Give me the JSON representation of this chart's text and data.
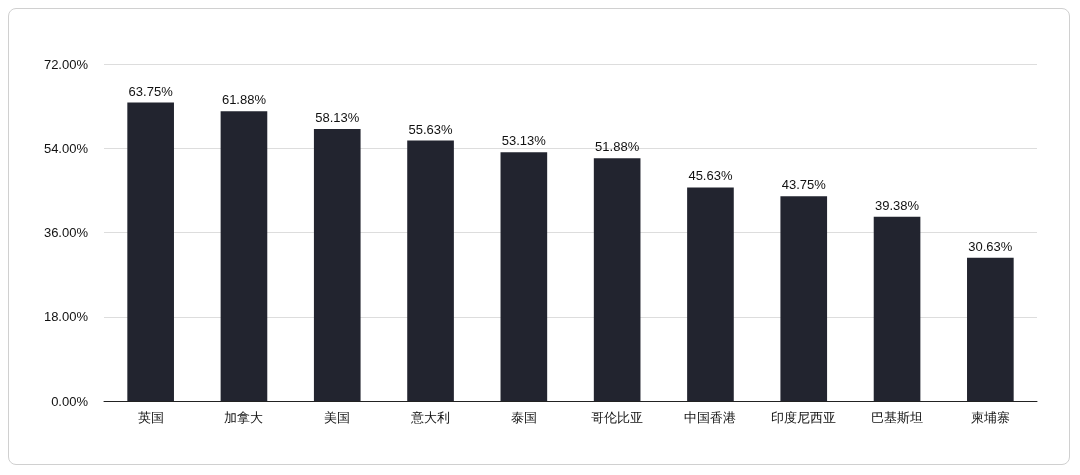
{
  "chart_data": {
    "type": "bar",
    "categories": [
      "英国",
      "加拿大",
      "美国",
      "意大利",
      "泰国",
      "哥伦比亚",
      "中国香港",
      "印度尼西亚",
      "巴基斯坦",
      "柬埔寨"
    ],
    "values": [
      63.75,
      61.88,
      58.13,
      55.63,
      53.13,
      51.88,
      45.63,
      43.75,
      39.38,
      30.63
    ],
    "value_labels": [
      "63.75%",
      "61.88%",
      "58.13%",
      "55.63%",
      "53.13%",
      "51.88%",
      "45.63%",
      "43.75%",
      "39.38%",
      "30.63%"
    ],
    "color": "#22242f",
    "ylim": [
      0,
      72
    ],
    "yticks": [
      {
        "value": 0,
        "label": "0.00%"
      },
      {
        "value": 18,
        "label": "18.00%"
      },
      {
        "value": 36,
        "label": "36.00%"
      },
      {
        "value": 54,
        "label": "54.00%"
      },
      {
        "value": 72,
        "label": "72.00%"
      }
    ],
    "grid": "y"
  }
}
